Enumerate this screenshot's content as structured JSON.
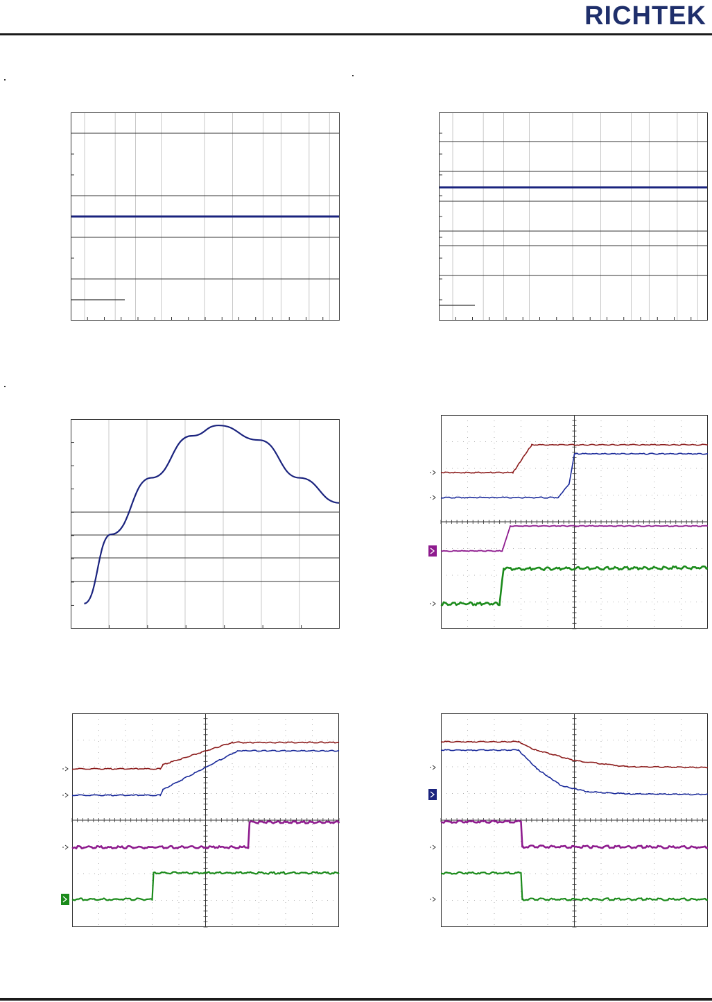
{
  "brand": {
    "logo_text": "RICHTEK",
    "logo_color": "#1f2f6b"
  },
  "colors": {
    "frame": "#333333",
    "grid": "#999999",
    "curve_blue": "#1a237e",
    "trace_red": "#8b1a1a",
    "trace_blue": "#1a2a9a",
    "trace_purple": "#8e1b8e",
    "trace_green": "#1a8a1a"
  },
  "chart_data": [
    {
      "type": "line",
      "title": "",
      "xlabel": "",
      "ylabel": "",
      "series": [
        {
          "x": [
            0,
            1
          ],
          "y": [
            0.5,
            0.5
          ]
        }
      ]
    },
    {
      "type": "line",
      "title": "",
      "xlabel": "",
      "ylabel": "",
      "series": [
        {
          "x": [
            0,
            1
          ],
          "y": [
            0.64,
            0.64
          ]
        }
      ]
    },
    {
      "type": "line",
      "title": "",
      "xlabel": "",
      "ylabel": "",
      "series": [
        {
          "x": [
            0.05,
            0.15,
            0.3,
            0.45,
            0.55,
            0.7,
            0.85,
            1.0
          ],
          "y": [
            0.12,
            0.45,
            0.72,
            0.92,
            0.97,
            0.9,
            0.72,
            0.6
          ]
        }
      ]
    },
    {
      "type": "line",
      "title": "",
      "xlabel": "",
      "ylabel": "",
      "series": [
        {
          "values": []
        },
        {
          "values": []
        },
        {
          "values": []
        },
        {
          "values": []
        }
      ]
    },
    {
      "type": "line",
      "title": "",
      "xlabel": "",
      "ylabel": "",
      "series": [
        {
          "values": []
        },
        {
          "values": []
        },
        {
          "values": []
        },
        {
          "values": []
        }
      ]
    },
    {
      "type": "line",
      "title": "",
      "xlabel": "",
      "ylabel": "",
      "series": [
        {
          "values": []
        },
        {
          "values": []
        },
        {
          "values": []
        },
        {
          "values": []
        }
      ]
    }
  ]
}
